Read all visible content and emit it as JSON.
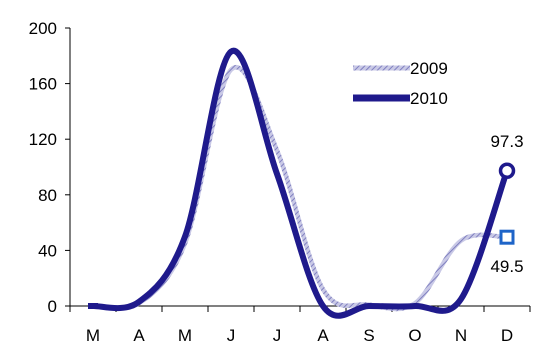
{
  "chart_data": {
    "type": "line",
    "title": "",
    "xlabel": "",
    "ylabel": "",
    "categories": [
      "M",
      "A",
      "M",
      "J",
      "J",
      "A",
      "S",
      "O",
      "N",
      "D"
    ],
    "ylim": [
      0,
      200
    ],
    "y_ticks": [
      0,
      40,
      80,
      120,
      160,
      200
    ],
    "grid": false,
    "legend_position": "top-right",
    "series": [
      {
        "name": "2009",
        "style": "hatched",
        "color": "#9c9ccf",
        "values": [
          0,
          2,
          45,
          170,
          112,
          12,
          1,
          2,
          47,
          49.5
        ],
        "end_marker": "square",
        "end_label": "49.5"
      },
      {
        "name": "2010",
        "style": "solid",
        "color": "#1f1a8c",
        "values": [
          0,
          3,
          50,
          183,
          95,
          0,
          0,
          0,
          5,
          97.3
        ],
        "end_marker": "circle",
        "end_label": "97.3"
      }
    ]
  }
}
